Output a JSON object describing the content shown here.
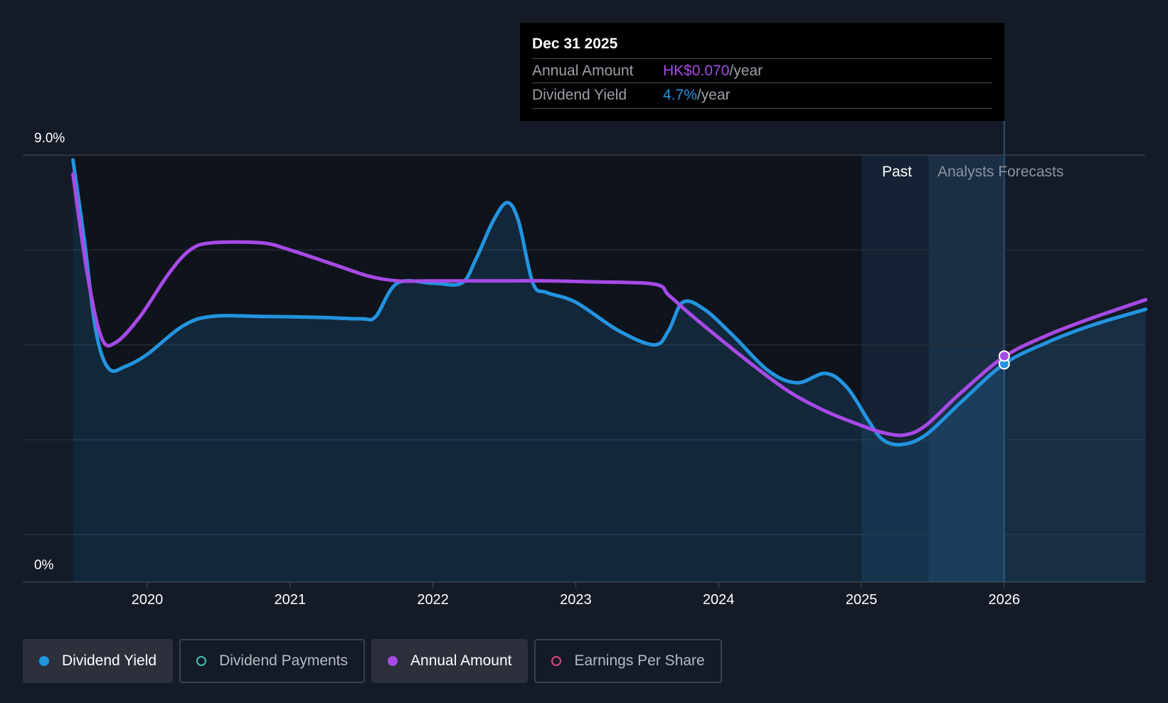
{
  "chart_data": {
    "type": "area",
    "y_axis": {
      "max_label": "9.0%",
      "min_label": "0%",
      "ylim": [
        0,
        9.0
      ]
    },
    "x_ticks": [
      "2020",
      "2021",
      "2022",
      "2023",
      "2024",
      "2025",
      "2026"
    ],
    "regions": {
      "past_label": "Past",
      "forecast_label": "Analysts Forecasts"
    },
    "series": [
      {
        "name": "Dividend Yield",
        "color": "#2394df",
        "points": [
          [
            2019.48,
            8.9
          ],
          [
            2019.56,
            7.2
          ],
          [
            2019.64,
            5.3
          ],
          [
            2019.73,
            4.5
          ],
          [
            2019.85,
            4.55
          ],
          [
            2020.0,
            4.8
          ],
          [
            2020.25,
            5.4
          ],
          [
            2020.45,
            5.6
          ],
          [
            2020.8,
            5.6
          ],
          [
            2021.2,
            5.58
          ],
          [
            2021.5,
            5.55
          ],
          [
            2021.6,
            5.6
          ],
          [
            2021.75,
            6.3
          ],
          [
            2022.0,
            6.3
          ],
          [
            2022.2,
            6.3
          ],
          [
            2022.3,
            6.8
          ],
          [
            2022.42,
            7.6
          ],
          [
            2022.52,
            8.0
          ],
          [
            2022.6,
            7.6
          ],
          [
            2022.7,
            6.3
          ],
          [
            2022.8,
            6.1
          ],
          [
            2023.0,
            5.9
          ],
          [
            2023.3,
            5.3
          ],
          [
            2023.55,
            5.0
          ],
          [
            2023.65,
            5.3
          ],
          [
            2023.75,
            5.9
          ],
          [
            2023.9,
            5.75
          ],
          [
            2024.1,
            5.2
          ],
          [
            2024.35,
            4.45
          ],
          [
            2024.55,
            4.2
          ],
          [
            2024.75,
            4.4
          ],
          [
            2024.9,
            4.1
          ],
          [
            2025.05,
            3.4
          ],
          [
            2025.15,
            3.0
          ],
          [
            2025.28,
            2.9
          ],
          [
            2025.45,
            3.1
          ],
          [
            2025.7,
            3.8
          ],
          [
            2026.0,
            4.6
          ],
          [
            2026.3,
            5.05
          ],
          [
            2026.6,
            5.4
          ],
          [
            2026.99,
            5.75
          ]
        ]
      },
      {
        "name": "Annual Amount",
        "color": "#a64ae6",
        "points": [
          [
            2019.48,
            8.6
          ],
          [
            2019.58,
            6.5
          ],
          [
            2019.68,
            5.15
          ],
          [
            2019.78,
            5.05
          ],
          [
            2019.95,
            5.6
          ],
          [
            2020.15,
            6.5
          ],
          [
            2020.3,
            7.0
          ],
          [
            2020.45,
            7.15
          ],
          [
            2020.8,
            7.15
          ],
          [
            2021.0,
            7.0
          ],
          [
            2021.3,
            6.7
          ],
          [
            2021.55,
            6.45
          ],
          [
            2021.75,
            6.35
          ],
          [
            2022.0,
            6.35
          ],
          [
            2022.5,
            6.35
          ],
          [
            2022.8,
            6.35
          ],
          [
            2023.1,
            6.33
          ],
          [
            2023.55,
            6.28
          ],
          [
            2023.65,
            6.05
          ],
          [
            2023.8,
            5.65
          ],
          [
            2024.0,
            5.15
          ],
          [
            2024.25,
            4.55
          ],
          [
            2024.5,
            4.0
          ],
          [
            2024.75,
            3.6
          ],
          [
            2025.0,
            3.3
          ],
          [
            2025.15,
            3.15
          ],
          [
            2025.3,
            3.1
          ],
          [
            2025.45,
            3.3
          ],
          [
            2025.7,
            4.0
          ],
          [
            2026.0,
            4.75
          ],
          [
            2026.3,
            5.2
          ],
          [
            2026.6,
            5.55
          ],
          [
            2026.99,
            5.95
          ]
        ]
      }
    ],
    "legend": [
      {
        "label": "Dividend Yield",
        "color": "#2394df",
        "active": true
      },
      {
        "label": "Dividend Payments",
        "color": "#3fc2b5",
        "active": false
      },
      {
        "label": "Annual Amount",
        "color": "#a64ae6",
        "active": true
      },
      {
        "label": "Earnings Per Share",
        "color": "#d9487f",
        "active": false
      }
    ],
    "tooltip": {
      "date": "Dec 31 2025",
      "rows": [
        {
          "label": "Annual Amount",
          "value": "HK$0.070",
          "unit": "/year",
          "color": "#a64ae6"
        },
        {
          "label": "Dividend Yield",
          "value": "4.7%",
          "unit": "/year",
          "color": "#2394df"
        }
      ]
    },
    "highlight_x": 2026.0,
    "past_start_x": 2025.0,
    "forecast_start_x": 2025.47
  }
}
